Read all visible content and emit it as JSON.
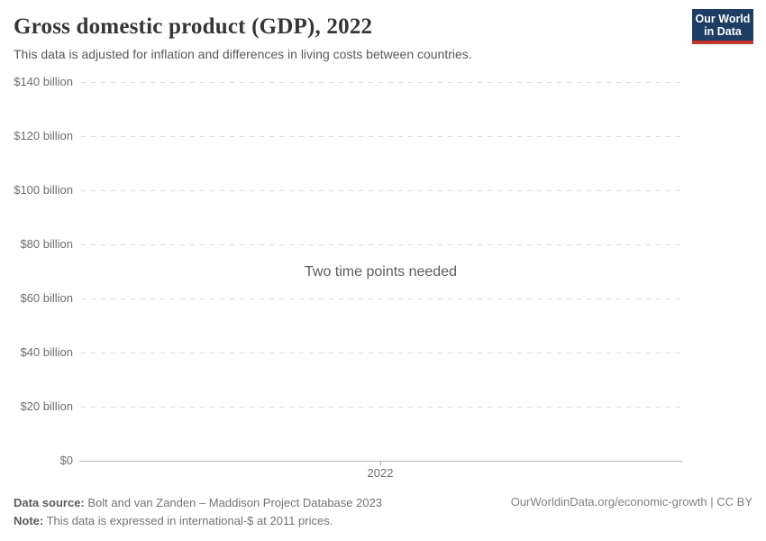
{
  "header": {
    "title": "Gross domestic product (GDP), 2022",
    "subtitle": "This data is adjusted for inflation and differences in living costs between countries.",
    "logo": {
      "line1": "Our World",
      "line2": "in Data"
    }
  },
  "chart_data": {
    "type": "line",
    "title": "Gross domestic product (GDP), 2022",
    "series": [],
    "empty_message": "Two time points needed",
    "x_ticks": [
      "2022"
    ],
    "y_ticks": [
      {
        "value": 140,
        "label": "$140 billion"
      },
      {
        "value": 120,
        "label": "$120 billion"
      },
      {
        "value": 100,
        "label": "$100 billion"
      },
      {
        "value": 80,
        "label": "$80 billion"
      },
      {
        "value": 60,
        "label": "$60 billion"
      },
      {
        "value": 40,
        "label": "$40 billion"
      },
      {
        "value": 20,
        "label": "$20 billion"
      },
      {
        "value": 0,
        "label": "$0"
      }
    ],
    "ylim": [
      0,
      140
    ],
    "xlabel": "",
    "ylabel": "",
    "grid": true,
    "legend": "none",
    "unit": "international-$ at 2011 prices"
  },
  "footer": {
    "datasource_label": "Data source:",
    "datasource_text": "Bolt and van Zanden – Maddison Project Database 2023",
    "note_label": "Note:",
    "note_text": "This data is expressed in international-$ at 2011 prices.",
    "link_text": "OurWorldinData.org/economic-growth | CC BY"
  },
  "colors": {
    "logo_bg": "#1d3d63",
    "logo_accent": "#c5352c",
    "gridline": "#dddddd",
    "axis": "#b3b3b3",
    "tick_text": "#6e6e6e"
  }
}
